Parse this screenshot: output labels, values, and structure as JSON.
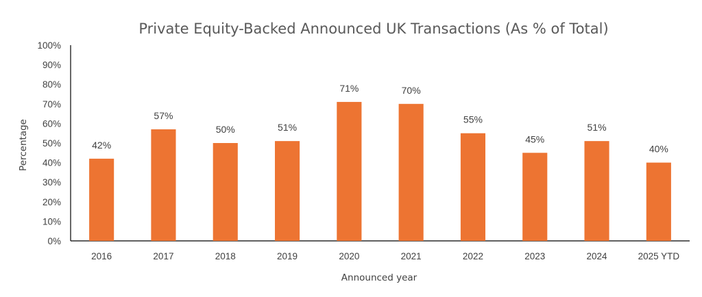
{
  "chart_data": {
    "type": "bar",
    "title": "Private Equity-Backed Announced UK Transactions (As % of Total)",
    "xlabel": "Announced year",
    "ylabel": "Percentage",
    "categories": [
      "2016",
      "2017",
      "2018",
      "2019",
      "2020",
      "2021",
      "2022",
      "2023",
      "2024",
      "2025 YTD"
    ],
    "values": [
      42,
      57,
      50,
      51,
      71,
      70,
      55,
      45,
      51,
      40
    ],
    "data_labels": [
      "42%",
      "57%",
      "50%",
      "51%",
      "71%",
      "70%",
      "55%",
      "45%",
      "51%",
      "40%"
    ],
    "ylim": [
      0,
      100
    ],
    "y_ticks": [
      "0%",
      "10%",
      "20%",
      "30%",
      "40%",
      "50%",
      "60%",
      "70%",
      "80%",
      "90%",
      "100%"
    ],
    "grid": false,
    "legend": "none",
    "bar_color": "#ED7432",
    "axis_color": "#000000"
  }
}
